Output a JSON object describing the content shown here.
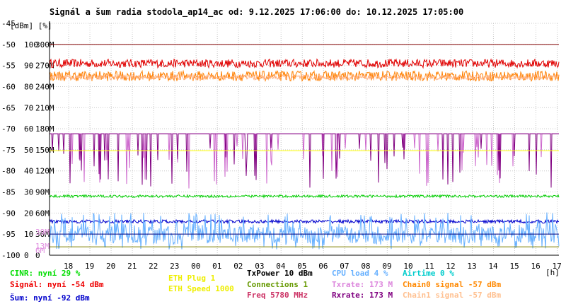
{
  "title": "Signál a šum radia stodola_ap14_ac od: 9.12.2025 17:06:00 do: 10.12.2025 17:05:00",
  "chart_data": {
    "type": "line",
    "title": "Signál a šum radia stodola_ap14_ac od: 9.12.2025 17:06:00 do: 10.12.2025 17:05:00",
    "y_units_label": "[dBm] [%]",
    "x_unit_label": "[h]",
    "grid": true,
    "ylim": [
      -100,
      -45
    ],
    "y_ticks": [
      {
        "v": -45,
        "dbm": "-45",
        "pct": "",
        "rate": ""
      },
      {
        "v": -50,
        "dbm": "-50",
        "pct": "100",
        "rate": "300M"
      },
      {
        "v": -55,
        "dbm": "-55",
        "pct": "90",
        "rate": "270M"
      },
      {
        "v": -60,
        "dbm": "-60",
        "pct": "80",
        "rate": "240M"
      },
      {
        "v": -65,
        "dbm": "-65",
        "pct": "70",
        "rate": "210M"
      },
      {
        "v": -70,
        "dbm": "-70",
        "pct": "60",
        "rate": "180M"
      },
      {
        "v": -75,
        "dbm": "-75",
        "pct": "50",
        "rate": "150M"
      },
      {
        "v": -80,
        "dbm": "-80",
        "pct": "40",
        "rate": "120M"
      },
      {
        "v": -85,
        "dbm": "-85",
        "pct": "30",
        "rate": "90M"
      },
      {
        "v": -90,
        "dbm": "-90",
        "pct": "20",
        "rate": "60M"
      },
      {
        "v": -95,
        "dbm": "-95",
        "pct": "10",
        "rate": "30M"
      },
      {
        "v": -100,
        "dbm": "-100",
        "pct": "0",
        "rate": "0"
      }
    ],
    "extra_ticks": [
      {
        "v": -94.5,
        "label": "39M",
        "color": "#e090e0"
      },
      {
        "v": -97.8,
        "label": "13M",
        "color": "#e090e0"
      },
      {
        "v": -98.8,
        "label": "6M",
        "color": "#e090e0"
      }
    ],
    "x_ticks": [
      "18",
      "19",
      "20",
      "21",
      "22",
      "23",
      "00",
      "01",
      "02",
      "03",
      "04",
      "05",
      "06",
      "07",
      "08",
      "09",
      "10",
      "11",
      "12",
      "13",
      "14",
      "15",
      "16",
      "17"
    ],
    "x_start_hour": 17.1,
    "x_end_hour": 41.083,
    "series": [
      {
        "name": "signal",
        "color": "#e00000",
        "base": -54.5,
        "noise": 1.0,
        "kind": "noisy"
      },
      {
        "name": "chain0",
        "color": "#ff8000",
        "base": -57.5,
        "noise": 1.2,
        "kind": "noisy"
      },
      {
        "name": "chain1",
        "color": "#ffb080",
        "base": -57.8,
        "noise": 0.6,
        "kind": "noisy"
      },
      {
        "name": "txrate",
        "color": "#cc66cc",
        "base": -71.2,
        "noise": 0.0,
        "kind": "dips"
      },
      {
        "name": "rxrate",
        "color": "#800080",
        "base": -71.2,
        "noise": 0.0,
        "kind": "dips"
      },
      {
        "name": "eth-speed",
        "color": "#ffff00",
        "base": -75.2,
        "noise": 0.0,
        "kind": "flat"
      },
      {
        "name": "cinr",
        "color": "#00cc00",
        "base": -86.0,
        "noise": 0.3,
        "kind": "noisy"
      },
      {
        "name": "noise",
        "color": "#0000cc",
        "base": -92.0,
        "noise": 0.4,
        "kind": "noisy"
      },
      {
        "name": "cpu-load",
        "color": "#66b0ff",
        "base": -96.0,
        "noise": 4.0,
        "kind": "spiky"
      },
      {
        "name": "connections",
        "color": "#808000",
        "base": -98.0,
        "noise": 0.2,
        "kind": "flat"
      },
      {
        "name": "airtime",
        "color": "#00cccc",
        "base": -100.0,
        "noise": 0.0,
        "kind": "flat"
      }
    ],
    "ref_lines": [
      {
        "v": -50,
        "color": "#800000"
      },
      {
        "v": -95,
        "color": "#000080"
      },
      {
        "v": -100,
        "color": "#000000"
      }
    ]
  },
  "legend": [
    {
      "key": "cinr",
      "text": "CINR: nyní 29 %",
      "color": "#00dd00"
    },
    {
      "key": "signal",
      "text": "Signál: nyní -54 dBm",
      "color": "#ee0000"
    },
    {
      "key": "noise",
      "text": "Šum: nyní -92 dBm",
      "color": "#0000cc"
    },
    {
      "key": "eth-plug",
      "text": "ETH Plug 1",
      "color": "#eeee00"
    },
    {
      "key": "eth-speed",
      "text": "ETH Speed 1000",
      "color": "#eeee00"
    },
    {
      "key": "txpower",
      "text": "TxPower 10 dBm",
      "color": "#000000"
    },
    {
      "key": "connections",
      "text": "Connections 1",
      "color": "#669900"
    },
    {
      "key": "freq",
      "text": "Freq 5780 MHz",
      "color": "#cc3366"
    },
    {
      "key": "cpu",
      "text": "CPU load 4 %",
      "color": "#66b0ff"
    },
    {
      "key": "txrate",
      "text": "Txrate: 173 M",
      "color": "#dd88dd"
    },
    {
      "key": "rxrate",
      "text": "Rxrate: 173 M",
      "color": "#800080"
    },
    {
      "key": "airtime",
      "text": "Airtime 0 %",
      "color": "#00cccc"
    },
    {
      "key": "chain0",
      "text": "Chain0 signal -57 dBm",
      "color": "#ff8800"
    },
    {
      "key": "chain1",
      "text": "Chain1 signal -57 dBm",
      "color": "#ffc090"
    }
  ]
}
